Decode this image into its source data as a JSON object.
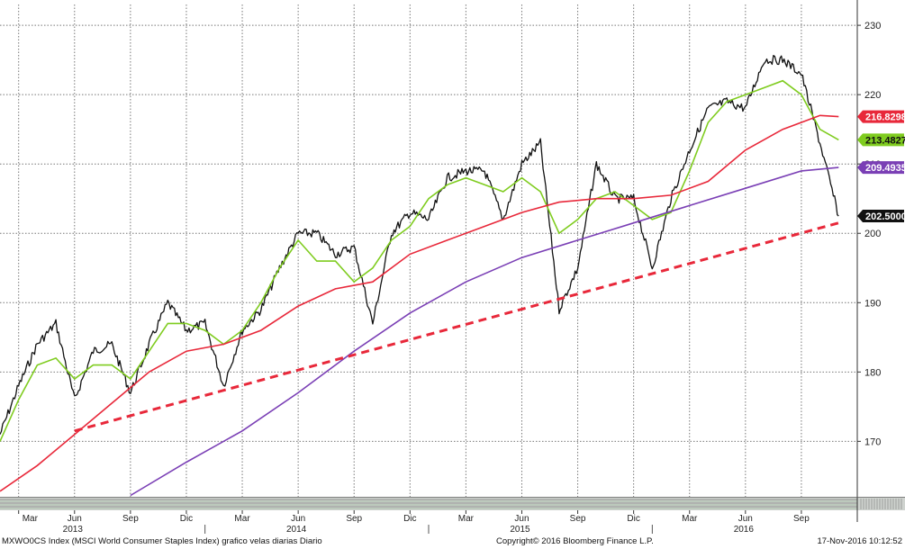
{
  "chart_data": {
    "type": "line",
    "ylim": [
      162,
      233
    ],
    "y_ticks": [
      170,
      180,
      190,
      200,
      210,
      220,
      230
    ],
    "grid": true,
    "months": [
      "Mar",
      "Jun",
      "Sep",
      "Dic",
      "Mar",
      "Jun",
      "Sep",
      "Dic",
      "Mar",
      "Jun",
      "Sep",
      "Dic",
      "Mar",
      "Jun",
      "Sep"
    ],
    "years": [
      "2013",
      "2014",
      "2015",
      "2016"
    ],
    "series": [
      {
        "color": "#111111",
        "x": [
          "2013-02",
          "2013-03",
          "2013-04",
          "2013-05",
          "2013-06",
          "2013-07",
          "2013-08",
          "2013-09",
          "2013-10",
          "2013-11",
          "2013-12",
          "2014-01",
          "2014-02",
          "2014-03",
          "2014-04",
          "2014-05",
          "2014-06",
          "2014-07",
          "2014-08",
          "2014-09",
          "2014-10",
          "2014-11",
          "2014-12",
          "2015-01",
          "2015-02",
          "2015-03",
          "2015-04",
          "2015-05",
          "2015-06",
          "2015-07",
          "2015-08",
          "2015-09",
          "2015-10",
          "2015-11",
          "2015-12",
          "2016-01",
          "2016-02",
          "2016-03",
          "2016-04",
          "2016-05",
          "2016-06",
          "2016-07",
          "2016-08",
          "2016-09",
          "2016-10",
          "2016-11"
        ],
        "values": [
          171,
          178,
          184,
          187,
          176,
          183,
          184,
          177,
          184,
          190,
          186,
          187,
          178,
          186,
          189,
          195,
          200,
          200,
          197,
          198,
          187,
          200,
          203,
          202,
          208,
          209,
          209,
          202,
          210,
          213,
          189,
          195,
          210,
          205,
          205,
          195,
          205,
          212,
          218,
          219,
          218,
          225,
          225,
          223,
          213,
          202.5
        ]
      },
      {
        "color": "#7fcc1f",
        "x": [
          "2013-02",
          "2013-03",
          "2013-04",
          "2013-05",
          "2013-06",
          "2013-07",
          "2013-08",
          "2013-09",
          "2013-10",
          "2013-11",
          "2013-12",
          "2014-01",
          "2014-02",
          "2014-03",
          "2014-04",
          "2014-05",
          "2014-06",
          "2014-07",
          "2014-08",
          "2014-09",
          "2014-10",
          "2014-11",
          "2014-12",
          "2015-01",
          "2015-02",
          "2015-03",
          "2015-04",
          "2015-05",
          "2015-06",
          "2015-07",
          "2015-08",
          "2015-09",
          "2015-10",
          "2015-11",
          "2015-12",
          "2016-01",
          "2016-02",
          "2016-03",
          "2016-04",
          "2016-05",
          "2016-06",
          "2016-07",
          "2016-08",
          "2016-09",
          "2016-10",
          "2016-11"
        ],
        "values": [
          170,
          176,
          181,
          182,
          179,
          181,
          181,
          179,
          183,
          187,
          187,
          186,
          184,
          186,
          190,
          195,
          199,
          196,
          196,
          193,
          195,
          199,
          201,
          205,
          207,
          208,
          207,
          206,
          208,
          206,
          200,
          202,
          205,
          206,
          204,
          202,
          203,
          209,
          216,
          219,
          220,
          221,
          222,
          220,
          215,
          213.4827
        ]
      },
      {
        "color": "#e8283a",
        "x": [
          "2013-02",
          "2013-04",
          "2013-06",
          "2013-08",
          "2013-10",
          "2013-12",
          "2014-02",
          "2014-04",
          "2014-06",
          "2014-08",
          "2014-10",
          "2014-12",
          "2015-02",
          "2015-04",
          "2015-06",
          "2015-08",
          "2015-10",
          "2015-12",
          "2016-02",
          "2016-04",
          "2016-06",
          "2016-08",
          "2016-10",
          "2016-11"
        ],
        "values": [
          162.8,
          166.5,
          171,
          175.5,
          180,
          183,
          184,
          186,
          189.5,
          192,
          193,
          197,
          199,
          201,
          203,
          204.5,
          205,
          205,
          205.5,
          207.5,
          212,
          215,
          217,
          216.8298
        ]
      },
      {
        "color": "#7a3fb5",
        "x": [
          "2013-09",
          "2013-12",
          "2014-03",
          "2014-06",
          "2014-09",
          "2014-12",
          "2015-03",
          "2015-06",
          "2015-09",
          "2015-12",
          "2016-03",
          "2016-06",
          "2016-09",
          "2016-11"
        ],
        "values": [
          162.2,
          167,
          171.5,
          177,
          183,
          188.5,
          193,
          196.5,
          199,
          201.5,
          204,
          206.5,
          209,
          209.4935
        ]
      },
      {
        "color": "#e8283a",
        "x": [
          "2013-06",
          "2016-11"
        ],
        "values": [
          171.5,
          201.5
        ]
      }
    ],
    "tags": [
      {
        "value": "216.8298",
        "y": 216.8298,
        "bg": "#e8283a",
        "fg": "#ffffff"
      },
      {
        "value": "213.4827",
        "y": 213.4827,
        "bg": "#7fcc1f",
        "fg": "#111111"
      },
      {
        "value": "209.4935",
        "y": 209.4935,
        "bg": "#7a3fb5",
        "fg": "#ffffff"
      },
      {
        "value": "202.5000",
        "y": 202.5,
        "bg": "#111111",
        "fg": "#ffffff"
      }
    ]
  },
  "footer": {
    "left": "MXWO0CS Index (MSCI World Consumer Staples Index) grafico velas diarias  Diario",
    "center": "Copyright© 2016 Bloomberg Finance L.P.",
    "right": "17-Nov-2016 10:12:52"
  }
}
